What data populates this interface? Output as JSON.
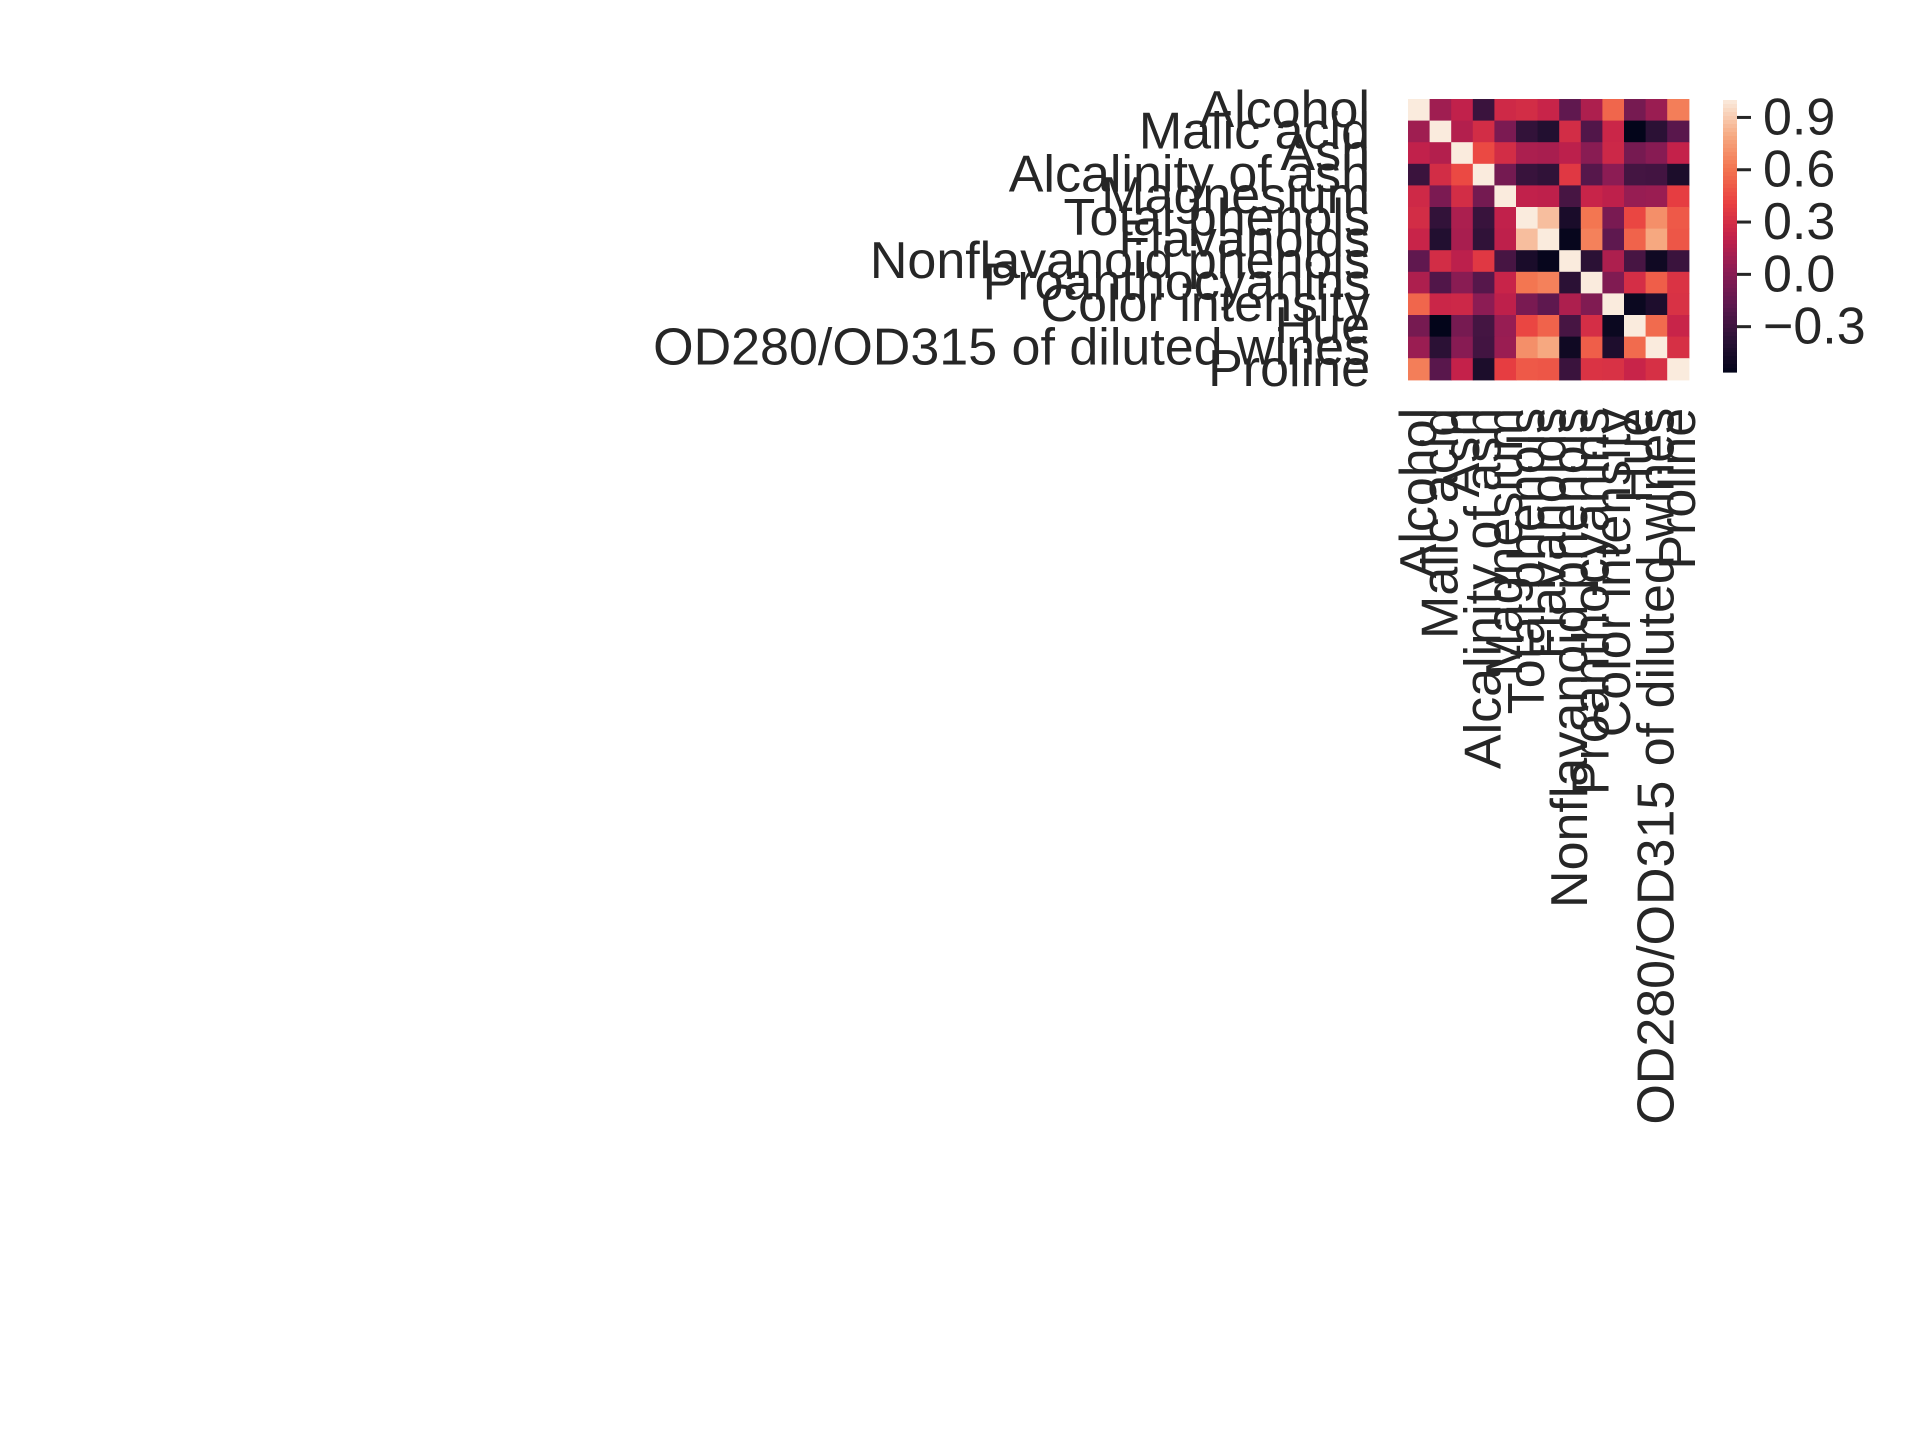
{
  "chart_data": {
    "type": "heatmap",
    "title": "",
    "xlabel": "",
    "ylabel": "",
    "labels": [
      "Alcohol",
      "Malic acid",
      "Ash",
      "Alcalinity of ash",
      "Magnesium",
      "Total phenols",
      "Flavanoids",
      "Nonflavanoid phenols",
      "Proanthocyanins",
      "Color intensity",
      "Hue",
      "OD280/OD315 of diluted wines",
      "Proline"
    ],
    "matrix": [
      [
        1.0,
        0.09,
        0.21,
        -0.31,
        0.27,
        0.29,
        0.24,
        -0.16,
        0.14,
        0.55,
        -0.07,
        0.07,
        0.64
      ],
      [
        0.09,
        1.0,
        0.16,
        0.29,
        -0.05,
        -0.34,
        -0.41,
        0.29,
        -0.22,
        0.25,
        -0.56,
        -0.37,
        -0.19
      ],
      [
        0.21,
        0.16,
        1.0,
        0.44,
        0.29,
        0.13,
        0.12,
        0.19,
        0.01,
        0.26,
        -0.07,
        0.0,
        0.22
      ],
      [
        -0.31,
        0.29,
        0.44,
        1.0,
        -0.08,
        -0.32,
        -0.35,
        0.36,
        -0.2,
        0.02,
        -0.27,
        -0.28,
        -0.44
      ],
      [
        0.27,
        -0.05,
        0.29,
        -0.08,
        1.0,
        0.21,
        0.2,
        -0.26,
        0.24,
        0.2,
        0.06,
        0.07,
        0.39
      ],
      [
        0.29,
        -0.34,
        0.13,
        -0.32,
        0.21,
        1.0,
        0.86,
        -0.45,
        0.61,
        -0.06,
        0.43,
        0.7,
        0.5
      ],
      [
        0.24,
        -0.41,
        0.12,
        -0.35,
        0.2,
        0.86,
        1.0,
        -0.54,
        0.65,
        -0.17,
        0.54,
        0.79,
        0.49
      ],
      [
        -0.16,
        0.29,
        0.19,
        0.36,
        -0.26,
        -0.45,
        -0.54,
        1.0,
        -0.37,
        0.14,
        -0.26,
        -0.5,
        -0.31
      ],
      [
        0.14,
        -0.22,
        0.01,
        -0.2,
        0.24,
        0.61,
        0.65,
        -0.37,
        1.0,
        -0.03,
        0.3,
        0.52,
        0.33
      ],
      [
        0.55,
        0.25,
        0.26,
        0.02,
        0.2,
        -0.06,
        -0.17,
        0.14,
        -0.03,
        1.0,
        -0.52,
        -0.43,
        0.32
      ],
      [
        -0.07,
        -0.56,
        -0.07,
        -0.27,
        0.06,
        0.43,
        0.54,
        -0.26,
        0.3,
        -0.52,
        1.0,
        0.57,
        0.24
      ],
      [
        0.07,
        -0.37,
        0.0,
        -0.28,
        0.07,
        0.7,
        0.79,
        -0.5,
        0.52,
        -0.43,
        0.57,
        1.0,
        0.31
      ],
      [
        0.64,
        -0.19,
        0.22,
        -0.44,
        0.39,
        0.5,
        0.49,
        -0.31,
        0.33,
        0.32,
        0.24,
        0.31,
        1.0
      ]
    ],
    "colorbar": {
      "vmin": -0.56,
      "vmax": 1.0,
      "ticks": [
        0.9,
        0.6,
        0.3,
        0.0,
        -0.3
      ],
      "tick_labels": [
        "0.9",
        "0.6",
        "0.3",
        "0.0",
        "−0.3"
      ],
      "colormap": "rocket"
    },
    "grid": false,
    "legend": "colorbar right"
  }
}
